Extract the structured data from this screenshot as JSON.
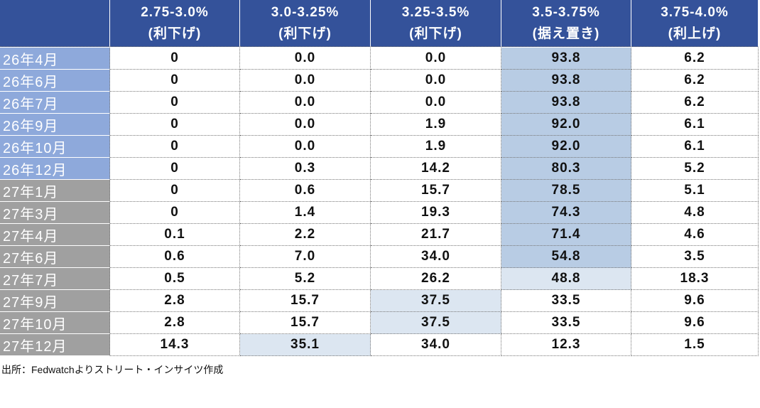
{
  "header": {
    "columns": [
      {
        "range": "2.75-3.0%",
        "note": "(利下げ)"
      },
      {
        "range": "3.0-3.25%",
        "note": "(利下げ)"
      },
      {
        "range": "3.25-3.5%",
        "note": "(利下げ)"
      },
      {
        "range": "3.5-3.75%",
        "note": "(据え置き)"
      },
      {
        "range": "3.75-4.0%",
        "note": "(利上げ)"
      }
    ]
  },
  "table": {
    "rows": [
      {
        "label": "26年4月",
        "cells": [
          "0",
          "0.0",
          "0.0",
          "93.8",
          "6.2"
        ]
      },
      {
        "label": "26年6月",
        "cells": [
          "0",
          "0.0",
          "0.0",
          "93.8",
          "6.2"
        ]
      },
      {
        "label": "26年7月",
        "cells": [
          "0",
          "0.0",
          "0.0",
          "93.8",
          "6.2"
        ]
      },
      {
        "label": "26年9月",
        "cells": [
          "0",
          "0.0",
          "1.9",
          "92.0",
          "6.1"
        ]
      },
      {
        "label": "26年10月",
        "cells": [
          "0",
          "0.0",
          "1.9",
          "92.0",
          "6.1"
        ]
      },
      {
        "label": "26年12月",
        "cells": [
          "0",
          "0.3",
          "14.2",
          "80.3",
          "5.2"
        ]
      },
      {
        "label": "27年1月",
        "cells": [
          "0",
          "0.6",
          "15.7",
          "78.5",
          "5.1"
        ]
      },
      {
        "label": "27年3月",
        "cells": [
          "0",
          "1.4",
          "19.3",
          "74.3",
          "4.8"
        ]
      },
      {
        "label": "27年4月",
        "cells": [
          "0.1",
          "2.2",
          "21.7",
          "71.4",
          "4.6"
        ]
      },
      {
        "label": "27年6月",
        "cells": [
          "0.6",
          "7.0",
          "34.0",
          "54.8",
          "3.5"
        ]
      },
      {
        "label": "27年7月",
        "cells": [
          "0.5",
          "5.2",
          "26.2",
          "48.8",
          "18.3"
        ]
      },
      {
        "label": "27年9月",
        "cells": [
          "2.8",
          "15.7",
          "37.5",
          "33.5",
          "9.6"
        ]
      },
      {
        "label": "27年10月",
        "cells": [
          "2.8",
          "15.7",
          "37.5",
          "33.5",
          "9.6"
        ]
      },
      {
        "label": "27年12月",
        "cells": [
          "14.3",
          "35.1",
          "34.0",
          "12.3",
          "1.5"
        ]
      }
    ]
  },
  "source": "出所：Fedwatchよりストリート・インサイツ作成"
}
